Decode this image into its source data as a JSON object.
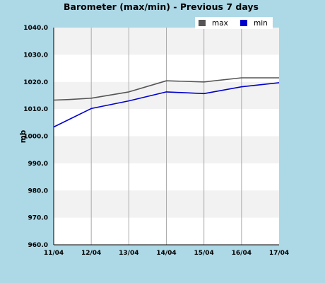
{
  "chart_data": {
    "type": "line",
    "title": "Barometer (max/min) - Previous 7 days",
    "ylabel": "mb",
    "xlabel": "",
    "categories": [
      "11/04",
      "12/04",
      "13/04",
      "14/04",
      "15/04",
      "16/04",
      "17/04"
    ],
    "y_ticks": [
      "960.0",
      "970.0",
      "980.0",
      "990.0",
      "1000.0",
      "1010.0",
      "1020.0",
      "1030.0",
      "1040.0"
    ],
    "ylim": [
      960,
      1040
    ],
    "grid": true,
    "legend_position": "top-right",
    "series": [
      {
        "name": "max",
        "color": "#555555",
        "x": [
          0,
          0.4,
          1,
          2,
          3,
          4,
          5,
          6
        ],
        "values": [
          1013.3,
          1013.5,
          1014.0,
          1016.3,
          1020.4,
          1020.0,
          1021.5,
          1021.5
        ]
      },
      {
        "name": "min",
        "color": "#0000cc",
        "x": [
          0,
          1,
          2,
          3,
          4,
          5,
          6
        ],
        "values": [
          1003.4,
          1010.2,
          1013.0,
          1016.3,
          1015.7,
          1018.2,
          1019.7
        ]
      }
    ]
  },
  "colors": {
    "page_background": "#add8e6",
    "plot_background": "#ffffff",
    "band_background": "#f2f2f2",
    "grid": "#aaaaaa",
    "axis": "#000000"
  }
}
